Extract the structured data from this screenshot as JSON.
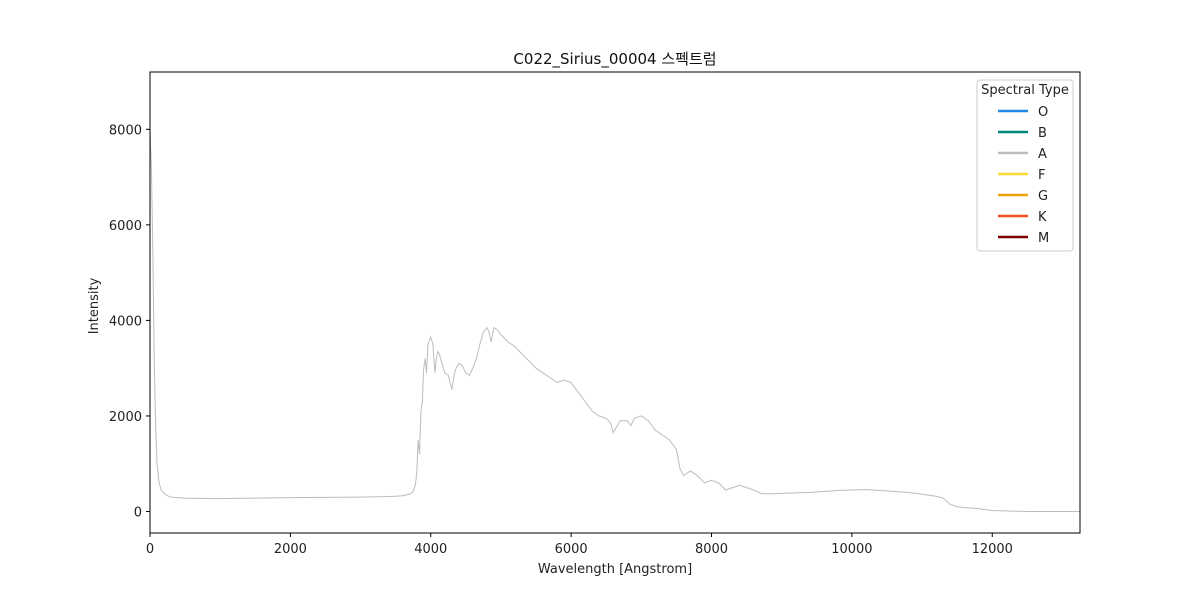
{
  "chart_data": {
    "type": "line",
    "title": "C022_Sirius_00004 스펙트럼",
    "xlabel": "Wavelength [Angstrom]",
    "ylabel": "Intensity",
    "xlim": [
      0,
      13250
    ],
    "ylim": [
      -450,
      9200
    ],
    "xticks": [
      0,
      2000,
      4000,
      6000,
      8000,
      10000,
      12000
    ],
    "yticks": [
      0,
      2000,
      4000,
      6000,
      8000
    ],
    "grid": false,
    "legend": {
      "title": "Spectral Type",
      "placement": "top-right",
      "entries": [
        {
          "label": "O",
          "color": "#1e88e5"
        },
        {
          "label": "B",
          "color": "#00897b"
        },
        {
          "label": "A",
          "color": "#bdbdbd"
        },
        {
          "label": "F",
          "color": "#fdd835"
        },
        {
          "label": "G",
          "color": "#f0a30a"
        },
        {
          "label": "K",
          "color": "#f4511e"
        },
        {
          "label": "M",
          "color": "#7f0000"
        }
      ]
    },
    "series": [
      {
        "color": "#bdbdbd",
        "x": [
          0,
          20,
          40,
          60,
          80,
          100,
          130,
          160,
          200,
          250,
          300,
          400,
          500,
          700,
          1000,
          1500,
          2000,
          2500,
          3000,
          3300,
          3500,
          3600,
          3700,
          3750,
          3780,
          3800,
          3820,
          3840,
          3860,
          3880,
          3900,
          3920,
          3940,
          3960,
          4000,
          4030,
          4060,
          4080,
          4100,
          4120,
          4150,
          4200,
          4250,
          4300,
          4340,
          4360,
          4400,
          4450,
          4500,
          4550,
          4600,
          4650,
          4700,
          4750,
          4800,
          4830,
          4861,
          4900,
          4950,
          5000,
          5100,
          5200,
          5300,
          5400,
          5500,
          5600,
          5700,
          5800,
          5900,
          6000,
          6100,
          6200,
          6300,
          6400,
          6500,
          6563,
          6600,
          6700,
          6800,
          6850,
          6900,
          7000,
          7100,
          7200,
          7300,
          7400,
          7500,
          7550,
          7600,
          7650,
          7700,
          7800,
          7900,
          8000,
          8100,
          8200,
          8300,
          8400,
          8500,
          8600,
          8700,
          8800,
          9000,
          9200,
          9400,
          9600,
          9800,
          10000,
          10200,
          10400,
          10600,
          10800,
          11000,
          11200,
          11300,
          11400,
          11500,
          11600,
          11800,
          12000,
          12500,
          13000,
          13250
        ],
        "y": [
          8000,
          7200,
          5500,
          3200,
          1800,
          1000,
          600,
          450,
          380,
          330,
          300,
          290,
          280,
          275,
          270,
          280,
          290,
          295,
          300,
          310,
          320,
          330,
          360,
          420,
          550,
          800,
          1500,
          1200,
          2100,
          2300,
          3000,
          3200,
          2900,
          3500,
          3650,
          3500,
          2900,
          3200,
          3350,
          3300,
          3150,
          2900,
          2850,
          2550,
          2900,
          3000,
          3100,
          3050,
          2900,
          2850,
          3000,
          3200,
          3500,
          3750,
          3850,
          3750,
          3550,
          3850,
          3800,
          3700,
          3550,
          3450,
          3300,
          3150,
          3000,
          2900,
          2800,
          2700,
          2750,
          2700,
          2500,
          2300,
          2100,
          2000,
          1950,
          1850,
          1650,
          1900,
          1900,
          1800,
          1950,
          2000,
          1900,
          1700,
          1600,
          1500,
          1300,
          900,
          750,
          800,
          850,
          750,
          600,
          650,
          600,
          450,
          500,
          550,
          500,
          450,
          380,
          370,
          380,
          390,
          400,
          420,
          440,
          450,
          460,
          440,
          420,
          400,
          360,
          320,
          280,
          150,
          100,
          80,
          60,
          20,
          0,
          0,
          0
        ]
      }
    ]
  }
}
